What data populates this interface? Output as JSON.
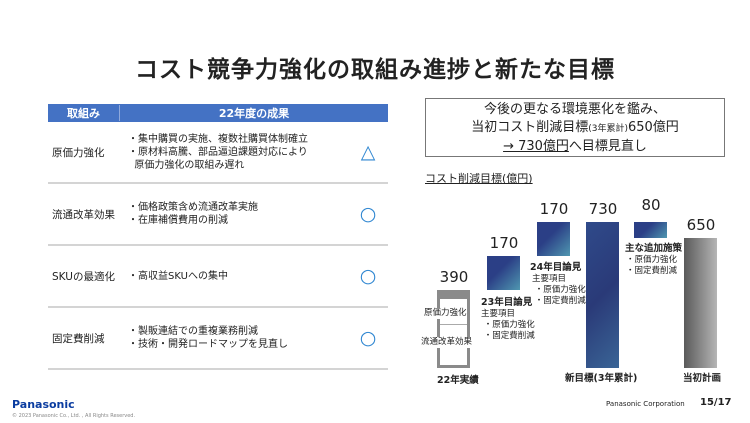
{
  "title": "コスト競争力強化の取組み進捗と新たな目標",
  "table": {
    "headers": [
      "取組み",
      "22年度の成果"
    ],
    "rows": [
      {
        "item": "原価力強化",
        "result": "・集中購買の実施、複数社購買体制確立\n・原材料高騰、部品逼迫課題対応により\n  原価力強化の取組み遅れ",
        "mark": "△"
      },
      {
        "item": "流通改革効果",
        "result": "・価格政策含め流通改革実施\n・在庫補償費用の削減",
        "mark": "○"
      },
      {
        "item": "SKUの最適化",
        "result": "・高収益SKUへの集中",
        "mark": "○"
      },
      {
        "item": "固定費削減",
        "result": "・製販連結での重複業務削減\n・技術・開発ロードマップを見直し",
        "mark": "○"
      }
    ]
  },
  "callout": {
    "line1": "今後の更なる環境悪化を鑑み、",
    "line2a": "当初コスト削減目標",
    "line2b": "(3年累計)",
    "line2c": "650億円",
    "line3a": "→ 730億円",
    "line3b": "へ目標見直し"
  },
  "chart_data": {
    "type": "bar",
    "subtype": "waterfall",
    "title": "コスト削減目標(億円)",
    "categories": [
      "22年実績",
      "23年目論見",
      "24年目論見",
      "新目標(3年累計)",
      "主な追加施策",
      "当初計画"
    ],
    "values": [
      390,
      170,
      170,
      730,
      80,
      650
    ],
    "annotations": {
      "c0_inner": [
        "原価力強化",
        "流通改革効果"
      ],
      "c1": "主要項目\n ・原価力強化\n ・固定費削減",
      "c2": "主要項目\n ・原価力強化\n ・固定費削減",
      "c4": "・原価力強化\n・固定費削減"
    },
    "colors": {
      "actual": "#8a8a8a",
      "increment": "#2f4a8a",
      "target": "#2d3f7e",
      "plan": "#7a7a7a"
    }
  },
  "footer": {
    "logo": "Panasonic",
    "copyright": "© 2023 Panasonic Co., Ltd. , All Rights Reserved.",
    "company": "Panasonic Corporation",
    "page": "15/17"
  }
}
